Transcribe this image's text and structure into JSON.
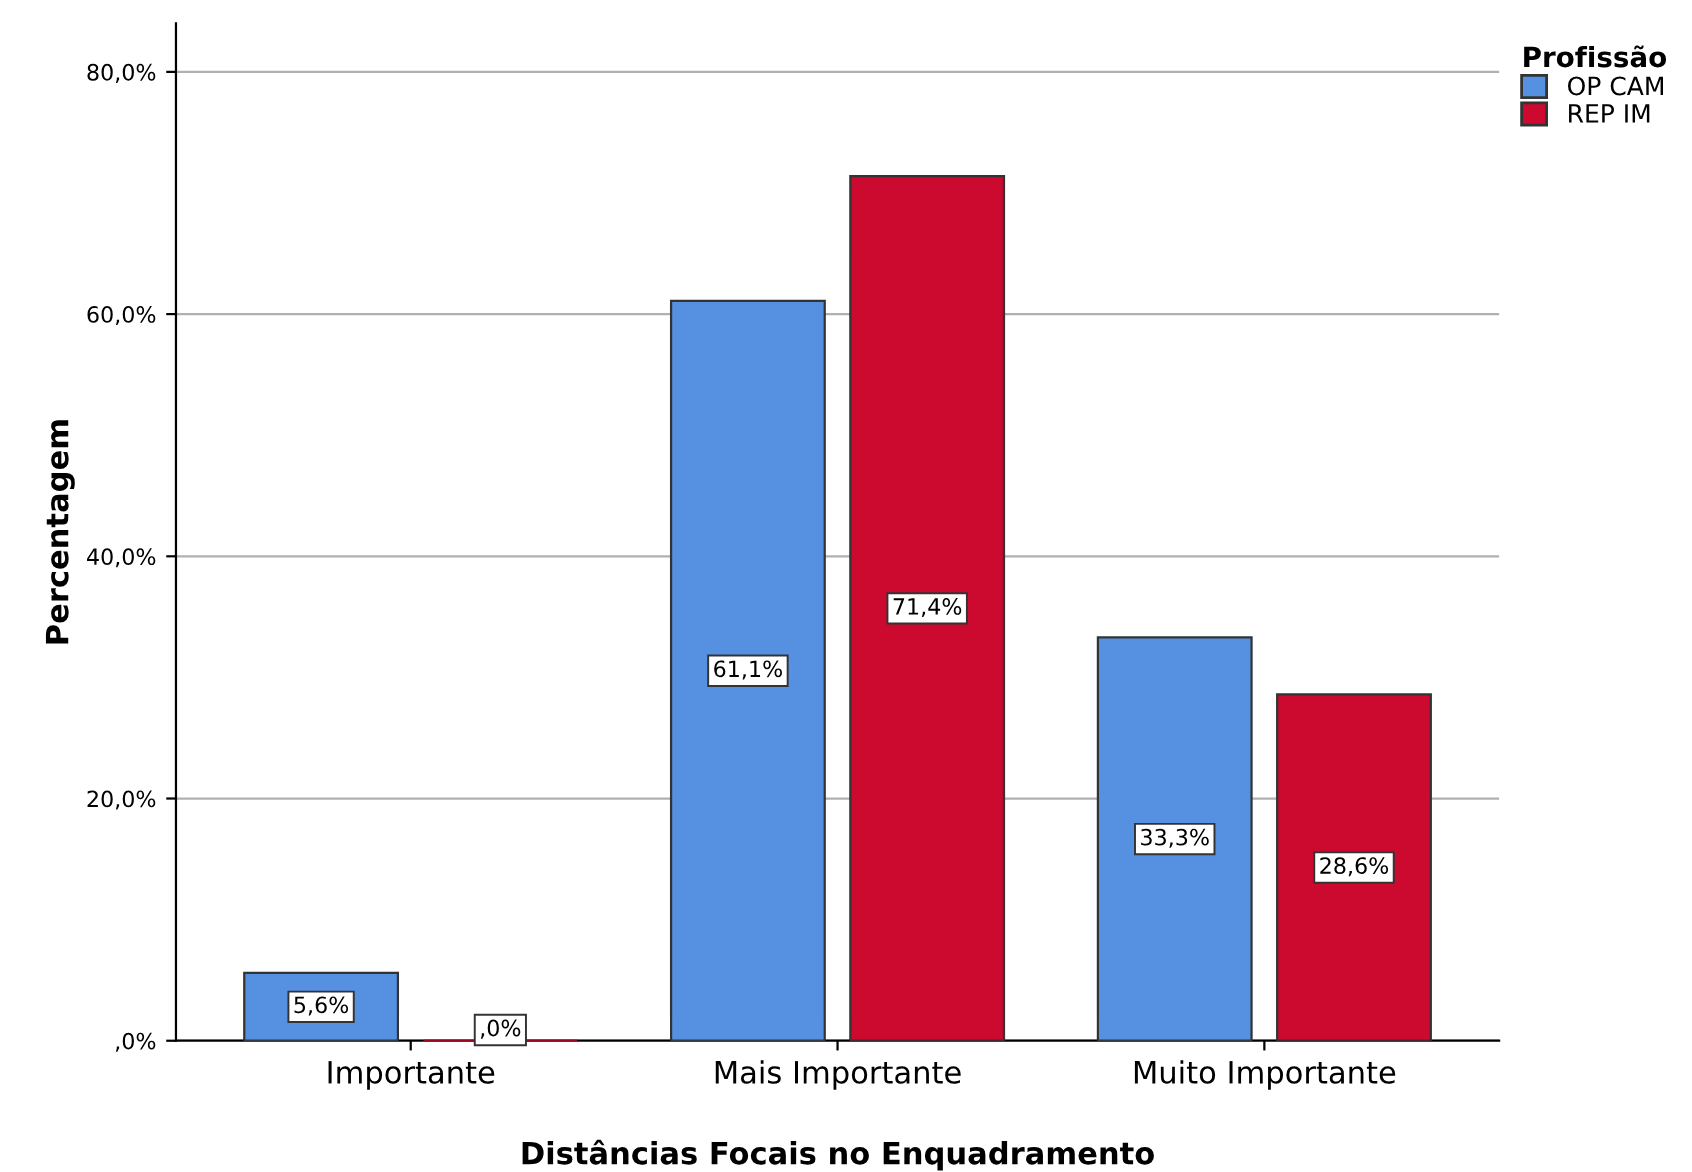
{
  "chart_data": {
    "type": "bar",
    "xlabel": "Distâncias Focais no Enquadramento",
    "ylabel": "Percentagem",
    "legend_title": "Profissão",
    "categories": [
      "Importante",
      "Mais Importante",
      "Muito Importante"
    ],
    "series": [
      {
        "name": "OP CAM",
        "color": "#5591e0",
        "values": [
          5.6,
          61.1,
          33.3
        ],
        "value_labels": [
          "5,6%",
          "61,1%",
          "33,3%"
        ]
      },
      {
        "name": "REP IM",
        "color": "#cc0a2f",
        "values": [
          0.0,
          71.4,
          28.6
        ],
        "value_labels": [
          ",0%",
          "71,4%",
          "28,6%"
        ]
      }
    ],
    "ylim": [
      0,
      84
    ],
    "yticks": [
      {
        "value": 0,
        "label": ",0%"
      },
      {
        "value": 20,
        "label": "20,0%"
      },
      {
        "value": 40,
        "label": "40,0%"
      },
      {
        "value": 60,
        "label": "60,0%"
      },
      {
        "value": 80,
        "label": "80,0%"
      }
    ],
    "grid": "y",
    "legend": "top right"
  }
}
